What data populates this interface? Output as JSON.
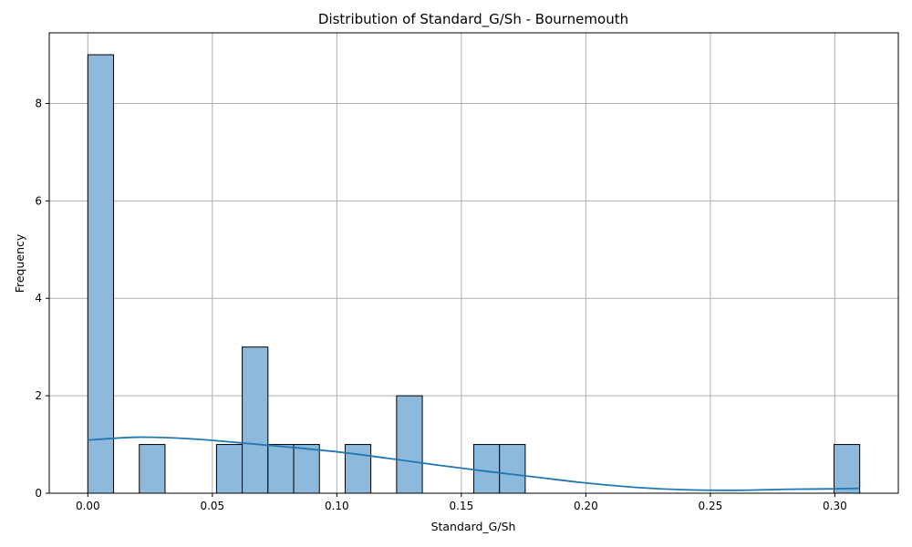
{
  "chart_data": {
    "type": "bar",
    "title": "Distribution of Standard_G/Sh - Bournemouth",
    "xlabel": "Standard_G/Sh",
    "ylabel": "Frequency",
    "xlim": [
      -0.0155,
      0.3255
    ],
    "ylim": [
      0,
      9.45
    ],
    "xticks": [
      0.0,
      0.05,
      0.1,
      0.15,
      0.2,
      0.25,
      0.3
    ],
    "xtick_labels": [
      "0.00",
      "0.05",
      "0.10",
      "0.15",
      "0.20",
      "0.25",
      "0.30"
    ],
    "yticks": [
      0,
      2,
      4,
      6,
      8
    ],
    "ytick_labels": [
      "0",
      "2",
      "4",
      "6",
      "8"
    ],
    "grid": true,
    "bin_width": 0.01033,
    "bins": [
      {
        "x0": 0.0,
        "count": 9
      },
      {
        "x0": 0.02067,
        "count": 1
      },
      {
        "x0": 0.05167,
        "count": 1
      },
      {
        "x0": 0.062,
        "count": 3
      },
      {
        "x0": 0.07233,
        "count": 1
      },
      {
        "x0": 0.08267,
        "count": 1
      },
      {
        "x0": 0.10333,
        "count": 1
      },
      {
        "x0": 0.124,
        "count": 2
      },
      {
        "x0": 0.155,
        "count": 1
      },
      {
        "x0": 0.16533,
        "count": 1
      },
      {
        "x0": 0.29967,
        "count": 1
      }
    ],
    "kde": {
      "x": [
        0.0,
        0.02,
        0.04,
        0.06,
        0.08,
        0.1,
        0.12,
        0.14,
        0.16,
        0.18,
        0.2,
        0.22,
        0.24,
        0.26,
        0.28,
        0.3,
        0.31
      ],
      "y": [
        1.09,
        1.15,
        1.12,
        1.04,
        0.95,
        0.85,
        0.72,
        0.58,
        0.45,
        0.33,
        0.21,
        0.12,
        0.07,
        0.06,
        0.08,
        0.09,
        0.1
      ]
    },
    "colors": {
      "bar_fill": "#8db9dc",
      "kde_line": "#1f77b4"
    }
  }
}
